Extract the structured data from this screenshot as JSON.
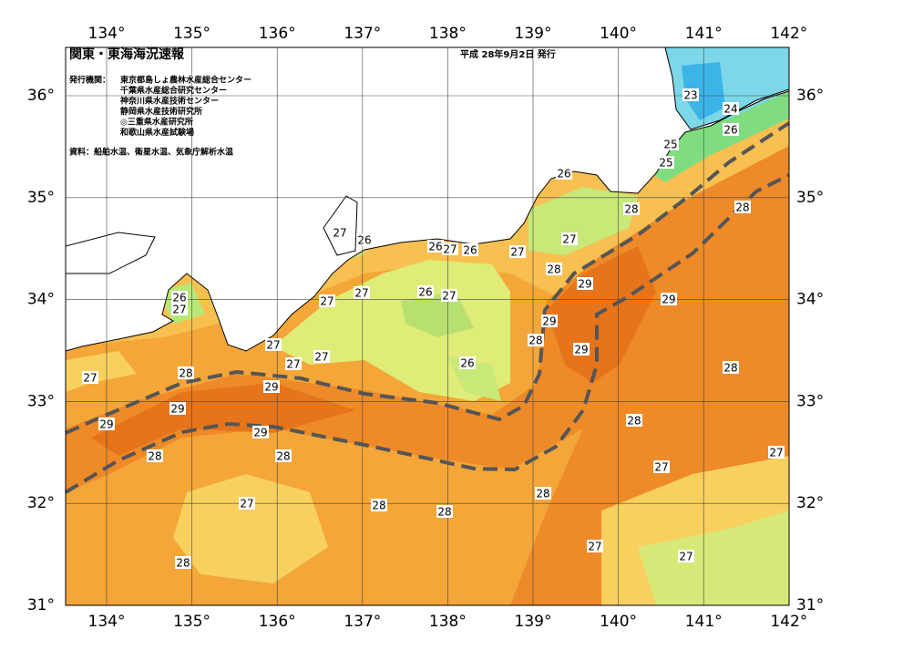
{
  "header": {
    "title": "関東・東海海況速報",
    "date": "平成 28年9月2日 発行",
    "issuers_label": "発行機関：",
    "issuers": [
      "東京都島しょ農林水産総合センター",
      "千葉県水産総合研究センター",
      "神奈川県水産技術センター",
      "静岡県水産技術研究所",
      "◎三重県水産研究所",
      "和歌山県水産試験場"
    ],
    "source": "資料：船舶水温、衛星水温、気象庁解析水温"
  },
  "axes": {
    "lon_labels": [
      "134°",
      "135°",
      "136°",
      "137°",
      "138°",
      "139°",
      "140°",
      "141°",
      "142°"
    ],
    "lat_labels": [
      "36°",
      "35°",
      "34°",
      "33°",
      "32°",
      "31°"
    ]
  },
  "isotherm_labels": [
    23,
    24,
    26,
    25,
    25,
    26,
    28,
    28,
    27,
    26,
    26,
    27,
    26,
    27,
    27,
    28,
    29,
    27,
    27,
    26,
    27,
    29,
    26,
    27,
    29,
    28,
    29,
    27,
    27,
    27,
    26,
    28,
    27,
    28,
    29,
    29,
    29,
    28,
    29,
    28,
    28,
    27,
    27,
    28,
    27,
    28,
    28,
    27,
    27,
    28
  ]
}
